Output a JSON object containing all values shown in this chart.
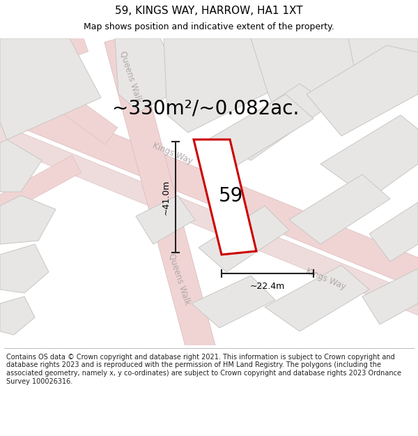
{
  "title": "59, KINGS WAY, HARROW, HA1 1XT",
  "subtitle": "Map shows position and indicative extent of the property.",
  "area_text": "~330m²/~0.082ac.",
  "property_number": "59",
  "dim_height": "~41.0m",
  "dim_width": "~22.4m",
  "footer_text": "Contains OS data © Crown copyright and database right 2021. This information is subject to Crown copyright and database rights 2023 and is reproduced with the permission of HM Land Registry. The polygons (including the associated geometry, namely x, y co-ordinates) are subject to Crown copyright and database rights 2023 Ordnance Survey 100026316.",
  "map_bg": "#f0eeee",
  "block_fc": "#e8e6e4",
  "block_ec": "#c8c6c4",
  "road_fc": "#f0d4d4",
  "road_ec": "#d8b8b8",
  "property_fill": "white",
  "property_outline": "#cc0000",
  "street_label_color": "#b0a8a8",
  "dim_line_color": "#222222",
  "title_fontsize": 11,
  "subtitle_fontsize": 9,
  "area_fontsize": 20,
  "number_fontsize": 20,
  "dim_fontsize": 9,
  "street_fontsize": 8.5,
  "footer_fontsize": 7.0
}
